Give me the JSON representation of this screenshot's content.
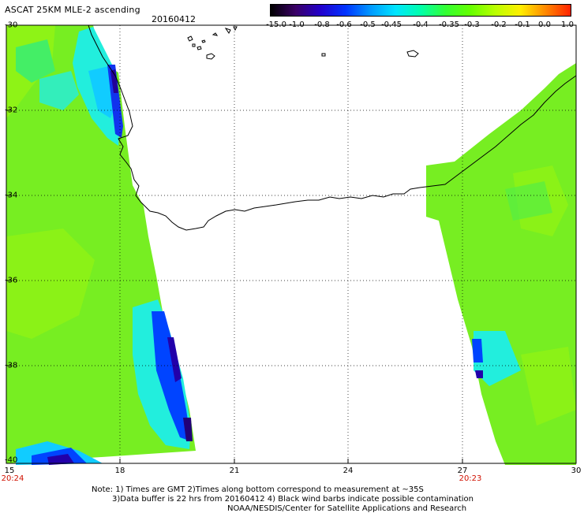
{
  "header": {
    "title": "ASCAT 25KM MLE-2 ascending",
    "date": "20160412"
  },
  "colorbar": {
    "labels": [
      "-15.0",
      "-1.0",
      "-0.8",
      "-0.6",
      "-0.5",
      "-0.45",
      "-0.4",
      "-0.35",
      "-0.3",
      "-0.2",
      "-0.1",
      "0.0",
      "1.0"
    ],
    "colors": [
      "#000000",
      "#3a0066",
      "#2200cc",
      "#0033ff",
      "#0099ff",
      "#00e5ff",
      "#00ffaa",
      "#33ff33",
      "#66ff00",
      "#bbff00",
      "#ffee00",
      "#ff8800",
      "#ff2200"
    ]
  },
  "axes": {
    "lat_labels": [
      "-30",
      "-32",
      "-34",
      "-36",
      "-38",
      "-40"
    ],
    "lon_labels": [
      "15",
      "18",
      "21",
      "24",
      "27",
      "30"
    ]
  },
  "pass_times": {
    "left": "20:24",
    "right": "20:23"
  },
  "notes": {
    "line1": "Note: 1) Times are GMT 2)Times along bottom correspond to measurement at ~35S",
    "line2": "3)Data buffer is 22 hrs from 20160412 4) Black wind barbs indicate possible contamination",
    "line3": "NOAA/NESDIS/Center for Satellite Applications and Research"
  }
}
